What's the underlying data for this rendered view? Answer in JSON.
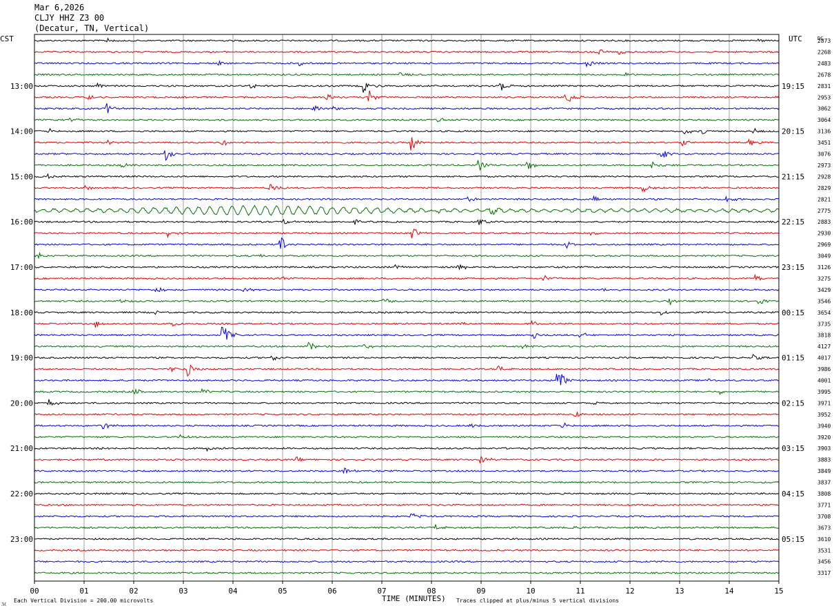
{
  "header": {
    "date": "Mar 6,2026",
    "station": "CLJY HHZ Z3 00",
    "location": "(Decatur, TN, Vertical)"
  },
  "left_zone": "CST",
  "right_zone": "UTC",
  "dc_label": "DC",
  "footer": {
    "scale_note": "Each Vertical Division =  200.00 microvolts",
    "xlabel": "TIME (MINUTES)",
    "clip_note": "Traces clipped at plus/minus 5 vertical divisions"
  },
  "colors": {
    "black": "#000000",
    "red": "#e00000",
    "blue": "#0000e0",
    "green": "#007000",
    "grid": "#888888"
  },
  "chart_data": {
    "type": "line",
    "title": "CLJY HHZ Z3 00",
    "xlabel": "TIME (MINUTES)",
    "xlim": [
      0,
      15
    ],
    "x_ticks": [
      "00",
      "01",
      "02",
      "03",
      "04",
      "05",
      "06",
      "07",
      "08",
      "09",
      "10",
      "11",
      "12",
      "13",
      "14",
      "15"
    ],
    "left_hour_labels": [
      "13:00",
      "14:00",
      "15:00",
      "16:00",
      "17:00",
      "18:00",
      "19:00",
      "20:00",
      "21:00",
      "22:00",
      "23:00"
    ],
    "right_hour_labels": [
      "19:15",
      "20:15",
      "21:15",
      "22:15",
      "23:15",
      "00:15",
      "01:15",
      "02:15",
      "03:15",
      "04:15",
      "05:15"
    ],
    "trace_color_cycle": [
      "black",
      "red",
      "blue",
      "green"
    ],
    "dc_offsets": [
      2873,
      2268,
      2483,
      2678,
      2831,
      2953,
      3062,
      3064,
      3136,
      3451,
      3076,
      2973,
      2928,
      2829,
      2821,
      2775,
      2883,
      2930,
      2969,
      3049,
      3126,
      3275,
      3429,
      3546,
      3654,
      3735,
      3818,
      4127,
      4017,
      3986,
      4001,
      3995,
      3971,
      3952,
      3940,
      3920,
      3903,
      3883,
      3849,
      3837,
      3808,
      3771,
      3708,
      3673,
      3610,
      3531,
      3456,
      3317
    ],
    "events": [
      {
        "trace": 0,
        "minute": 1.45,
        "amp": 5
      },
      {
        "trace": 0,
        "minute": 14.6,
        "amp": 3
      },
      {
        "trace": 1,
        "minute": 11.4,
        "amp": 6
      },
      {
        "trace": 1,
        "minute": 11.8,
        "amp": 5
      },
      {
        "trace": 2,
        "minute": 3.7,
        "amp": 4
      },
      {
        "trace": 2,
        "minute": 5.35,
        "amp": 4
      },
      {
        "trace": 2,
        "minute": 11.15,
        "amp": 5
      },
      {
        "trace": 3,
        "minute": 7.35,
        "amp": 4
      },
      {
        "trace": 3,
        "minute": 11.85,
        "amp": 5
      },
      {
        "trace": 4,
        "minute": 1.3,
        "amp": 4
      },
      {
        "trace": 4,
        "minute": 4.35,
        "amp": 5
      },
      {
        "trace": 4,
        "minute": 6.65,
        "amp": 10
      },
      {
        "trace": 4,
        "minute": 9.4,
        "amp": 10
      },
      {
        "trace": 5,
        "minute": 1.1,
        "amp": 5
      },
      {
        "trace": 5,
        "minute": 5.9,
        "amp": 5
      },
      {
        "trace": 5,
        "minute": 6.75,
        "amp": 9
      },
      {
        "trace": 5,
        "minute": 10.7,
        "amp": 14
      },
      {
        "trace": 5,
        "minute": 14.95,
        "amp": 6
      },
      {
        "trace": 6,
        "minute": 1.45,
        "amp": 8
      },
      {
        "trace": 6,
        "minute": 5.6,
        "amp": 6
      },
      {
        "trace": 6,
        "minute": 6.05,
        "amp": 4
      },
      {
        "trace": 7,
        "minute": 0.7,
        "amp": 4
      },
      {
        "trace": 7,
        "minute": 8.15,
        "amp": 4
      },
      {
        "trace": 8,
        "minute": 0.3,
        "amp": 3
      },
      {
        "trace": 8,
        "minute": 13.1,
        "amp": 5
      },
      {
        "trace": 8,
        "minute": 13.45,
        "amp": 5
      },
      {
        "trace": 8,
        "minute": 14.5,
        "amp": 4
      },
      {
        "trace": 9,
        "minute": 1.5,
        "amp": 4
      },
      {
        "trace": 9,
        "minute": 3.8,
        "amp": 5
      },
      {
        "trace": 9,
        "minute": 7.6,
        "amp": 12
      },
      {
        "trace": 9,
        "minute": 13.05,
        "amp": 5
      },
      {
        "trace": 9,
        "minute": 14.4,
        "amp": 5
      },
      {
        "trace": 10,
        "minute": 2.65,
        "amp": 10
      },
      {
        "trace": 10,
        "minute": 12.65,
        "amp": 7
      },
      {
        "trace": 11,
        "minute": 1.75,
        "amp": 6
      },
      {
        "trace": 11,
        "minute": 8.95,
        "amp": 8
      },
      {
        "trace": 11,
        "minute": 9.9,
        "amp": 10
      },
      {
        "trace": 11,
        "minute": 12.45,
        "amp": 7
      },
      {
        "trace": 12,
        "minute": 0.3,
        "amp": 4
      },
      {
        "trace": 13,
        "minute": 1.0,
        "amp": 4
      },
      {
        "trace": 13,
        "minute": 4.75,
        "amp": 8
      },
      {
        "trace": 13,
        "minute": 12.25,
        "amp": 12
      },
      {
        "trace": 14,
        "minute": 8.7,
        "amp": 5
      },
      {
        "trace": 14,
        "minute": 11.3,
        "amp": 5
      },
      {
        "trace": 14,
        "minute": 13.95,
        "amp": 6
      },
      {
        "trace": 15,
        "minute": 7.95,
        "amp": 6
      },
      {
        "trace": 15,
        "minute": 9.2,
        "amp": 5
      },
      {
        "trace": 16,
        "minute": 5.05,
        "amp": 4
      },
      {
        "trace": 16,
        "minute": 6.45,
        "amp": 5
      },
      {
        "trace": 16,
        "minute": 8.95,
        "amp": 6
      },
      {
        "trace": 17,
        "minute": 2.7,
        "amp": 6
      },
      {
        "trace": 17,
        "minute": 7.6,
        "amp": 10
      },
      {
        "trace": 17,
        "minute": 11.2,
        "amp": 4
      },
      {
        "trace": 18,
        "minute": 4.95,
        "amp": 14
      },
      {
        "trace": 18,
        "minute": 10.7,
        "amp": 6
      },
      {
        "trace": 19,
        "minute": 0.1,
        "amp": 6
      },
      {
        "trace": 19,
        "minute": 4.5,
        "amp": 3
      },
      {
        "trace": 20,
        "minute": 7.3,
        "amp": 4
      },
      {
        "trace": 20,
        "minute": 8.55,
        "amp": 6
      },
      {
        "trace": 21,
        "minute": 5.0,
        "amp": 3
      },
      {
        "trace": 21,
        "minute": 10.25,
        "amp": 6
      },
      {
        "trace": 21,
        "minute": 14.55,
        "amp": 5
      },
      {
        "trace": 22,
        "minute": 2.45,
        "amp": 7
      },
      {
        "trace": 22,
        "minute": 4.2,
        "amp": 4
      },
      {
        "trace": 22,
        "minute": 11.45,
        "amp": 4
      },
      {
        "trace": 23,
        "minute": 1.75,
        "amp": 4
      },
      {
        "trace": 23,
        "minute": 7.05,
        "amp": 6
      },
      {
        "trace": 23,
        "minute": 12.8,
        "amp": 5
      },
      {
        "trace": 23,
        "minute": 14.6,
        "amp": 5
      },
      {
        "trace": 24,
        "minute": 2.45,
        "amp": 4
      },
      {
        "trace": 24,
        "minute": 12.65,
        "amp": 4
      },
      {
        "trace": 25,
        "minute": 1.25,
        "amp": 5
      },
      {
        "trace": 25,
        "minute": 2.8,
        "amp": 5
      },
      {
        "trace": 25,
        "minute": 8.6,
        "amp": 3
      },
      {
        "trace": 25,
        "minute": 10.05,
        "amp": 4
      },
      {
        "trace": 26,
        "minute": 3.8,
        "amp": 18
      },
      {
        "trace": 26,
        "minute": 10.05,
        "amp": 6
      },
      {
        "trace": 26,
        "minute": 11.0,
        "amp": 5
      },
      {
        "trace": 27,
        "minute": 5.55,
        "amp": 8
      },
      {
        "trace": 27,
        "minute": 6.65,
        "amp": 6
      },
      {
        "trace": 27,
        "minute": 9.85,
        "amp": 3
      },
      {
        "trace": 28,
        "minute": 4.8,
        "amp": 4
      },
      {
        "trace": 28,
        "minute": 14.5,
        "amp": 4
      },
      {
        "trace": 29,
        "minute": 2.75,
        "amp": 5
      },
      {
        "trace": 29,
        "minute": 3.1,
        "amp": 10
      },
      {
        "trace": 29,
        "minute": 9.35,
        "amp": 5
      },
      {
        "trace": 30,
        "minute": 10.55,
        "amp": 18
      },
      {
        "trace": 30,
        "minute": 13.6,
        "amp": 3
      },
      {
        "trace": 31,
        "minute": 2.0,
        "amp": 6
      },
      {
        "trace": 31,
        "minute": 3.4,
        "amp": 5
      },
      {
        "trace": 31,
        "minute": 13.8,
        "amp": 5
      },
      {
        "trace": 32,
        "minute": 0.3,
        "amp": 5
      },
      {
        "trace": 32,
        "minute": 11.3,
        "amp": 3
      },
      {
        "trace": 33,
        "minute": 10.9,
        "amp": 4
      },
      {
        "trace": 34,
        "minute": 1.4,
        "amp": 5
      },
      {
        "trace": 34,
        "minute": 8.75,
        "amp": 4
      },
      {
        "trace": 34,
        "minute": 10.65,
        "amp": 4
      },
      {
        "trace": 35,
        "minute": 2.95,
        "amp": 3
      },
      {
        "trace": 36,
        "minute": 1.2,
        "amp": 3
      },
      {
        "trace": 36,
        "minute": 3.5,
        "amp": 3
      },
      {
        "trace": 37,
        "minute": 5.3,
        "amp": 3
      },
      {
        "trace": 37,
        "minute": 9.0,
        "amp": 8
      },
      {
        "trace": 38,
        "minute": 6.25,
        "amp": 5
      },
      {
        "trace": 42,
        "minute": 7.6,
        "amp": 6
      },
      {
        "trace": 43,
        "minute": 8.1,
        "amp": 5
      },
      {
        "trace": 43,
        "minute": 10.9,
        "amp": 3
      }
    ],
    "swell_traces": [
      15
    ]
  }
}
